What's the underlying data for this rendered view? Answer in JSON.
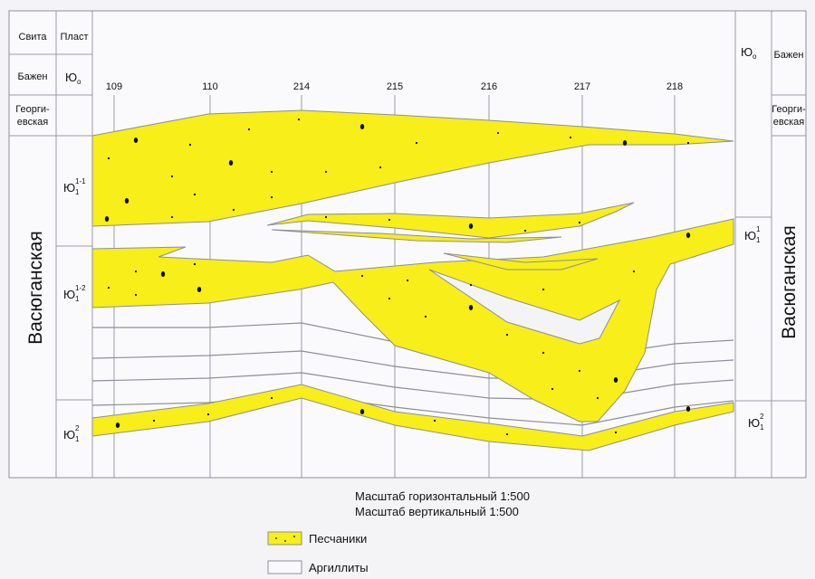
{
  "header": {
    "suite": "Свита",
    "layer": "Пласт"
  },
  "left": {
    "bazhen": "Бажен",
    "yu0": {
      "base": "Ю",
      "sub": "о"
    },
    "georgievskaya": [
      "Георги-",
      "евская"
    ],
    "vasyugan": "Васюганская",
    "layers": [
      {
        "base": "Ю",
        "sub": "1",
        "sup": "1-1"
      },
      {
        "base": "Ю",
        "sub": "1",
        "sup": "1-2"
      },
      {
        "base": "Ю",
        "sub": "1",
        "sup": "2"
      }
    ]
  },
  "right": {
    "bazhen": "Бажен",
    "yu0": {
      "base": "Ю",
      "sub": "о"
    },
    "georgievskaya": [
      "Георги-",
      "евская"
    ],
    "vasyugan": "Васюганская",
    "layers": [
      {
        "base": "Ю",
        "sub": "1",
        "sup": "1"
      },
      {
        "base": "Ю",
        "sub": "1",
        "sup": "2"
      }
    ]
  },
  "wells": [
    "109",
    "110",
    "214",
    "215",
    "216",
    "217",
    "218"
  ],
  "scale": [
    "Масштаб горизонтальный 1:500",
    "Масштаб вертикальный  1:500"
  ],
  "legend": [
    "Песчаники",
    "Аргиллиты"
  ]
}
